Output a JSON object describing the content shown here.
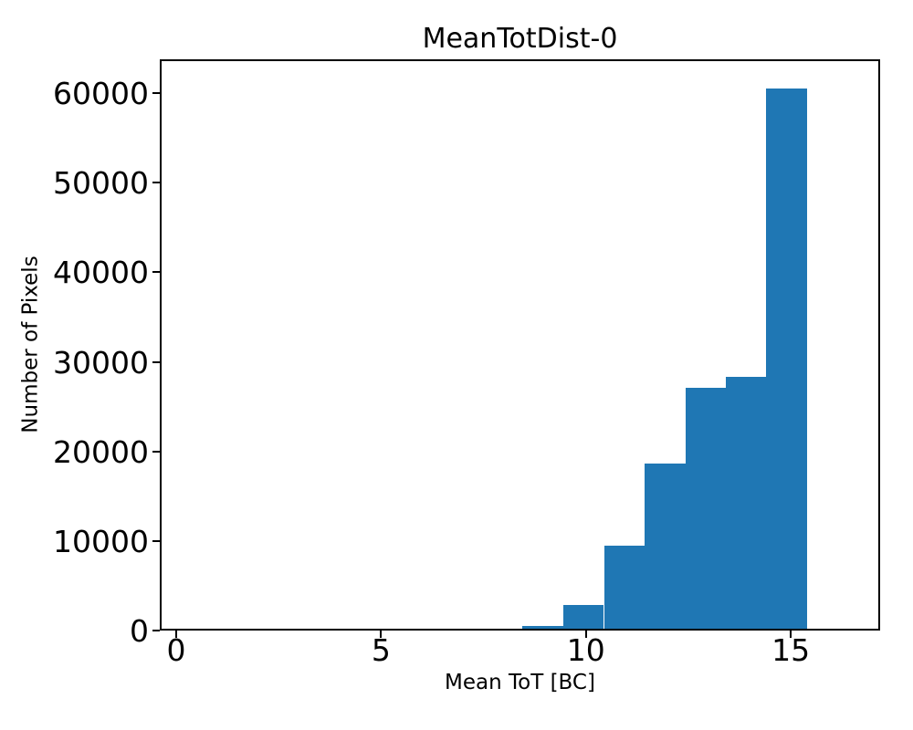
{
  "chart_data": {
    "type": "histogram",
    "title": "MeanTotDist-0",
    "xlabel": "Mean ToT [BC]",
    "ylabel": "Number of Pixels",
    "bar_color": "#1f77b4",
    "background_color": "#ffffff",
    "axis_color": "#000000",
    "grid": false,
    "legend": false,
    "xlim": [
      -0.4,
      17.18
    ],
    "ylim": [
      0,
      63770
    ],
    "x_tick_values": [
      0,
      5,
      10,
      15
    ],
    "x_tick_labels": [
      "0",
      "5",
      "10",
      "15"
    ],
    "y_tick_values": [
      0,
      10000,
      20000,
      30000,
      40000,
      50000,
      60000
    ],
    "y_tick_labels": [
      "0",
      "10000",
      "20000",
      "30000",
      "40000",
      "50000",
      "60000"
    ],
    "bin_edges": [
      7.44,
      8.44,
      9.44,
      10.44,
      11.44,
      12.44,
      13.42,
      14.4,
      15.39
    ],
    "counts": [
      120,
      550,
      2850,
      9470,
      18640,
      27100,
      28320,
      60500
    ]
  }
}
